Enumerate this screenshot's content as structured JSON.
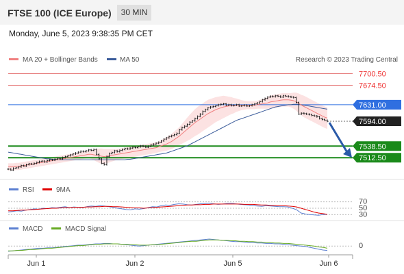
{
  "header": {
    "title": "FTSE 100 (ICE Europe)",
    "timeframe": "30 MIN"
  },
  "datetime": "Monday, June 5, 2023 9:38:35 PM CET",
  "credit": "Research © 2023 Trading Central",
  "colors": {
    "bollinger": "#f08080",
    "ma50": "#3a5b9a",
    "rsi": "#5b7fd1",
    "rsi_ma": "#e00000",
    "macd": "#5b7fd1",
    "macd_signal": "#66aa22",
    "support": "#1a8a1a",
    "pivot": "#2f6fe0",
    "price_tag": "#222222",
    "arrow": "#2a5aa8"
  },
  "chart_data": [
    {
      "type": "line",
      "panel": "price",
      "legend": [
        "MA 20 + Bollinger Bands",
        "MA 50"
      ],
      "x_labels": [
        "Jun 1",
        "Jun 2",
        "Jun 5",
        "Jun 6"
      ],
      "ylim": [
        7470,
        7715
      ],
      "levels": [
        {
          "value": 7700.5,
          "label": "7700.50",
          "kind": "resistance"
        },
        {
          "value": 7674.5,
          "label": "7674.50",
          "kind": "resistance"
        },
        {
          "value": 7631.0,
          "label": "7631.00",
          "kind": "pivot"
        },
        {
          "value": 7594.0,
          "label": "7594.00",
          "kind": "last"
        },
        {
          "value": 7538.5,
          "label": "7538.50",
          "kind": "support"
        },
        {
          "value": 7512.5,
          "label": "7512.50",
          "kind": "support"
        }
      ],
      "price": [
        7487,
        7485,
        7489,
        7490,
        7492,
        7495,
        7494,
        7497,
        7499,
        7498,
        7500,
        7502,
        7504,
        7505,
        7503,
        7506,
        7508,
        7507,
        7509,
        7511,
        7510,
        7513,
        7515,
        7517,
        7519,
        7521,
        7523,
        7525,
        7527,
        7526,
        7528,
        7530,
        7529,
        7531,
        7520,
        7510,
        7500,
        7497,
        7515,
        7522,
        7524,
        7528,
        7526,
        7529,
        7531,
        7533,
        7532,
        7534,
        7536,
        7535,
        7537,
        7539,
        7538,
        7536,
        7538,
        7541,
        7543,
        7545,
        7547,
        7550,
        7554,
        7557,
        7560,
        7562,
        7564,
        7567,
        7575,
        7580,
        7583,
        7587,
        7592,
        7595,
        7600,
        7605,
        7610,
        7616,
        7620,
        7624,
        7626,
        7627,
        7629,
        7631,
        7632,
        7633,
        7630,
        7631,
        7629,
        7630,
        7631,
        7628,
        7629,
        7630,
        7628,
        7629,
        7631,
        7633,
        7635,
        7638,
        7642,
        7645,
        7648,
        7650,
        7649,
        7651,
        7650,
        7648,
        7651,
        7650,
        7649,
        7648,
        7647,
        7636,
        7610,
        7612,
        7611,
        7610,
        7609,
        7607,
        7606,
        7604,
        7600,
        7598,
        7596,
        7594
      ],
      "ma20": [
        7492,
        7492,
        7492,
        7493,
        7493,
        7494,
        7495,
        7496,
        7497,
        7498,
        7499,
        7500,
        7501,
        7502,
        7503,
        7504,
        7505,
        7506,
        7507,
        7508,
        7509,
        7510,
        7511,
        7512,
        7513,
        7514,
        7515,
        7516,
        7517,
        7518,
        7519,
        7520,
        7520,
        7519,
        7518,
        7517,
        7516,
        7515,
        7516,
        7517,
        7518,
        7519,
        7520,
        7521,
        7522,
        7523,
        7524,
        7525,
        7526,
        7527,
        7528,
        7529,
        7530,
        7531,
        7532,
        7533,
        7534,
        7535,
        7537,
        7539,
        7541,
        7543,
        7546,
        7549,
        7553,
        7557,
        7561,
        7566,
        7571,
        7576,
        7581,
        7586,
        7591,
        7595,
        7599,
        7603,
        7607,
        7611,
        7614,
        7617,
        7620,
        7622,
        7624,
        7626,
        7627,
        7628,
        7629,
        7629,
        7630,
        7630,
        7630,
        7630,
        7630,
        7630,
        7630,
        7630,
        7631,
        7632,
        7633,
        7634,
        7635,
        7637,
        7638,
        7639,
        7640,
        7641,
        7642,
        7642,
        7642,
        7641,
        7640,
        7638,
        7634,
        7630,
        7627,
        7624,
        7621,
        7618,
        7615,
        7612,
        7609,
        7606,
        7603,
        7601
      ],
      "bb_width": [
        8,
        8,
        8,
        8,
        8,
        8,
        8,
        8,
        8,
        8,
        8,
        8,
        8,
        8,
        8,
        8,
        8,
        8,
        8,
        8,
        8,
        8,
        8,
        8,
        8,
        8,
        8,
        8,
        8,
        8,
        8,
        8,
        10,
        12,
        14,
        16,
        17,
        17,
        16,
        15,
        14,
        13,
        12,
        12,
        12,
        12,
        12,
        12,
        12,
        12,
        12,
        12,
        12,
        12,
        12,
        12,
        12,
        12,
        12,
        13,
        14,
        15,
        16,
        17,
        18,
        19,
        20,
        22,
        24,
        26,
        28,
        29,
        30,
        31,
        31,
        31,
        31,
        31,
        30,
        29,
        28,
        27,
        26,
        25,
        23,
        21,
        19,
        17,
        15,
        13,
        11,
        10,
        9,
        9,
        9,
        9,
        9,
        10,
        11,
        12,
        13,
        14,
        15,
        15,
        15,
        15,
        15,
        15,
        15,
        16,
        18,
        20,
        22,
        23,
        24,
        24,
        24,
        24,
        24,
        24,
        24,
        24,
        24,
        24
      ],
      "ma50": [
        7525,
        7524,
        7523,
        7522,
        7521,
        7520,
        7519,
        7518,
        7517,
        7516,
        7515,
        7514,
        7513,
        7512,
        7511,
        7510,
        7510,
        7509,
        7509,
        7508,
        7508,
        7508,
        7508,
        7508,
        7508,
        7508,
        7508,
        7508,
        7508,
        7508,
        7508,
        7508,
        7508,
        7508,
        7508,
        7508,
        7508,
        7508,
        7508,
        7508,
        7508,
        7508,
        7508,
        7508,
        7508,
        7508,
        7509,
        7509,
        7510,
        7511,
        7512,
        7513,
        7514,
        7515,
        7516,
        7517,
        7518,
        7519,
        7520,
        7521,
        7522,
        7523,
        7525,
        7527,
        7529,
        7531,
        7533,
        7535,
        7537,
        7539,
        7542,
        7545,
        7548,
        7551,
        7554,
        7557,
        7560,
        7563,
        7566,
        7569,
        7572,
        7575,
        7578,
        7581,
        7584,
        7587,
        7590,
        7593,
        7596,
        7598,
        7600,
        7602,
        7604,
        7606,
        7608,
        7610,
        7612,
        7614,
        7616,
        7618,
        7620,
        7622,
        7624,
        7626,
        7627,
        7628,
        7629,
        7630,
        7631,
        7631,
        7632,
        7632,
        7632,
        7631,
        7630,
        7629,
        7628,
        7627,
        7626,
        7625,
        7624,
        7623,
        7622,
        7621
      ]
    },
    {
      "type": "line",
      "panel": "rsi",
      "legend": [
        "RSI",
        "9MA"
      ],
      "levels": [
        70,
        50,
        30
      ],
      "ylim": [
        20,
        80
      ],
      "rsi": [
        38,
        40,
        42,
        41,
        44,
        46,
        48,
        47,
        50,
        49,
        52,
        51,
        53,
        55,
        52,
        54,
        53,
        52,
        55,
        57,
        56,
        58,
        57,
        55,
        53,
        50,
        48,
        46,
        45,
        48,
        47,
        49,
        52,
        55,
        54,
        58,
        60,
        59,
        62,
        64,
        63,
        61,
        60,
        62,
        64,
        65,
        66,
        64,
        62,
        63,
        65,
        66,
        64,
        62,
        61,
        60,
        58,
        57,
        56,
        58,
        57,
        56,
        55,
        55,
        54,
        50,
        45,
        35,
        32,
        30,
        29,
        28,
        30,
        31
      ],
      "ma": [
        42,
        42,
        43,
        44,
        44,
        45,
        46,
        47,
        48,
        49,
        50,
        50,
        51,
        52,
        52,
        53,
        53,
        53,
        54,
        54,
        55,
        55,
        56,
        56,
        55,
        55,
        54,
        53,
        52,
        51,
        51,
        50,
        51,
        52,
        53,
        54,
        55,
        56,
        57,
        58,
        59,
        60,
        60,
        61,
        61,
        62,
        62,
        63,
        63,
        63,
        63,
        63,
        63,
        63,
        62,
        62,
        62,
        61,
        60,
        60,
        59,
        59,
        58,
        58,
        57,
        56,
        54,
        50,
        46,
        42,
        38,
        35,
        33,
        31
      ]
    },
    {
      "type": "line",
      "panel": "macd",
      "legend": [
        "MACD",
        "MACD Signal"
      ],
      "levels": [
        0
      ],
      "ylim": [
        -20,
        30
      ],
      "macd": [
        -12,
        -11,
        -10,
        -9,
        -8,
        -7,
        -6,
        -5,
        -5,
        -4,
        -4,
        -3,
        -2,
        -1,
        0,
        1,
        2,
        2,
        3,
        4,
        5,
        5,
        6,
        6,
        5,
        5,
        4,
        3,
        2,
        1,
        0,
        1,
        2,
        3,
        4,
        5,
        6,
        7,
        8,
        9,
        10,
        11,
        12,
        13,
        14,
        15,
        16,
        15,
        14,
        13,
        12,
        11,
        10,
        10,
        9,
        8,
        8,
        7,
        7,
        6,
        6,
        5,
        5,
        4,
        3,
        2,
        1,
        0,
        -1,
        -3,
        -5,
        -7,
        -9,
        -10
      ],
      "signal": [
        -11,
        -11,
        -10,
        -10,
        -9,
        -8,
        -8,
        -7,
        -6,
        -5,
        -5,
        -4,
        -3,
        -2,
        -1,
        0,
        1,
        1,
        2,
        3,
        4,
        4,
        5,
        5,
        5,
        5,
        4,
        4,
        3,
        3,
        2,
        2,
        2,
        3,
        3,
        4,
        5,
        6,
        7,
        8,
        9,
        10,
        11,
        11,
        12,
        13,
        14,
        14,
        14,
        13,
        13,
        12,
        12,
        11,
        11,
        10,
        10,
        9,
        9,
        8,
        8,
        7,
        7,
        6,
        6,
        5,
        4,
        3,
        2,
        1,
        0,
        -2,
        -3,
        -5
      ]
    }
  ]
}
